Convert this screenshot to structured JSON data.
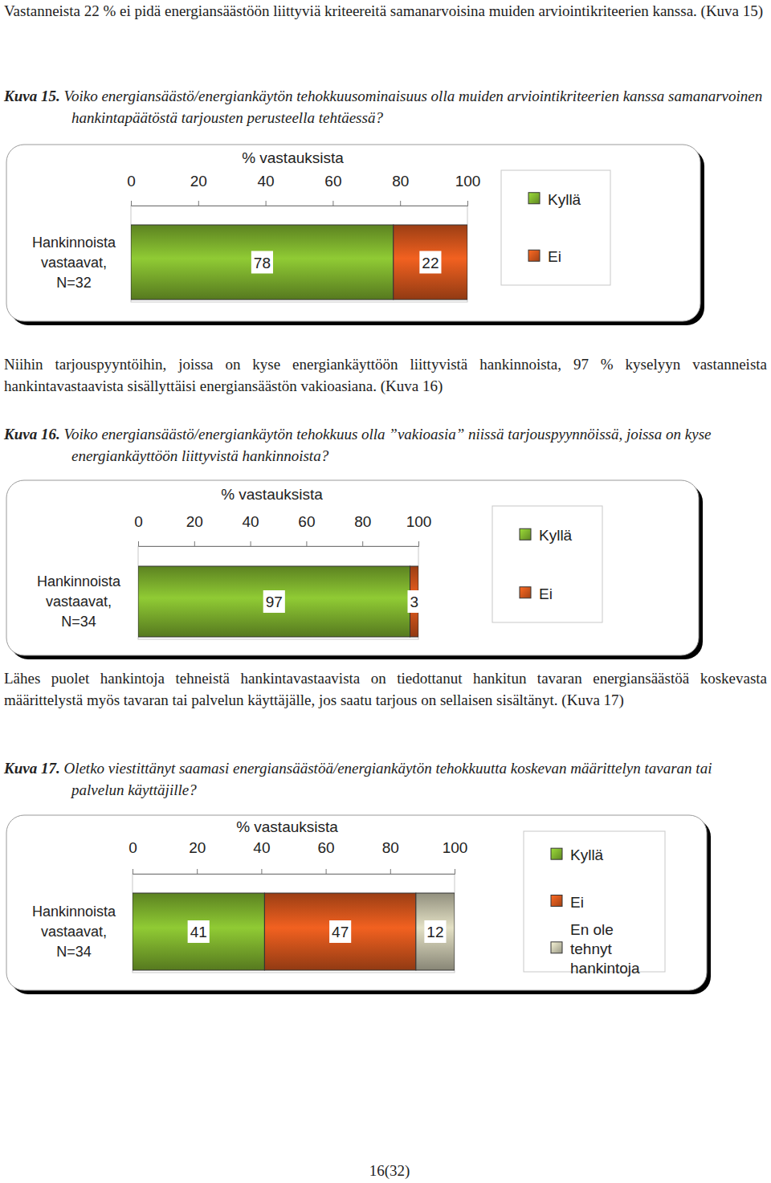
{
  "document": {
    "paragraphs": [
      "Vastanneista 22 % ei pidä energiansäästöön liittyviä kriteereitä samanarvoisina muiden arviointikriteerien kanssa. (Kuva 15)",
      "Niihin tarjouspyyntöihin, joissa on kyse energiankäyttöön liittyvistä hankinnoista, 97 % kyselyyn vastanneista hankintavastaavista sisällyttäisi energiansäästön vakioasiana. (Kuva 16)",
      "Lähes puolet hankintoja tehneistä hankintavastaavista on tiedottanut hankitun tavaran energiansäästöä koskevasta määrittelystä myös tavaran tai palvelun käyttäjälle, jos saatu tarjous on sellaisen sisältänyt. (Kuva 17)"
    ],
    "page_number": "16(32)"
  },
  "chart_data": [
    {
      "type": "bar",
      "orientation": "horizontal",
      "stacked": true,
      "data_labels": true,
      "legend": "right",
      "figure_label": "Kuva 15.",
      "title": "Voiko energiansäästö/energiankäytön tehokkuusominaisuus olla muiden arviointikriteerien kanssa samanarvoinen hankintapäätöstä tarjousten perusteella tehtäessä?",
      "xlabel": "% vastauksista",
      "categories": [
        "Hankinnoista vastaavat, N=32"
      ],
      "series": [
        {
          "name": "Kyllä",
          "color": "#7fb32e",
          "values": [
            78
          ]
        },
        {
          "name": "Ei",
          "color": "#d6561c",
          "values": [
            22
          ]
        }
      ],
      "xlim": [
        0,
        100
      ],
      "xticks": [
        0,
        20,
        40,
        60,
        80,
        100
      ]
    },
    {
      "type": "bar",
      "orientation": "horizontal",
      "stacked": true,
      "data_labels": true,
      "legend": "right",
      "figure_label": "Kuva 16.",
      "title": "Voiko energiansäästö/energiankäytön tehokkuus olla ”vakioasia” niissä tarjouspyynnöissä, joissa on kyse energiankäyttöön liittyvistä hankinnoista?",
      "xlabel": "% vastauksista",
      "categories": [
        "Hankinnoista vastaavat, N=34"
      ],
      "series": [
        {
          "name": "Kyllä",
          "color": "#7fb32e",
          "values": [
            97
          ]
        },
        {
          "name": "Ei",
          "color": "#d6561c",
          "values": [
            3
          ]
        }
      ],
      "xlim": [
        0,
        100
      ],
      "xticks": [
        0,
        20,
        40,
        60,
        80,
        100
      ]
    },
    {
      "type": "bar",
      "orientation": "horizontal",
      "stacked": true,
      "data_labels": true,
      "legend": "right",
      "figure_label": "Kuva 17.",
      "title": "Oletko viestittänyt saamasi energiansäästöä/energiankäytön tehokkuutta koskevan määrittelyn tavaran tai palvelun käyttäjille?",
      "xlabel": "% vastauksista",
      "categories": [
        "Hankinnoista vastaavat, N=34"
      ],
      "series": [
        {
          "name": "Kyllä",
          "color": "#7fb32e",
          "values": [
            41
          ]
        },
        {
          "name": "Ei",
          "color": "#d6561c",
          "values": [
            47
          ]
        },
        {
          "name": "En ole tehnyt hankintoja",
          "color": "#c9c7ae",
          "values": [
            12
          ]
        }
      ],
      "xlim": [
        0,
        100
      ],
      "xticks": [
        0,
        20,
        40,
        60,
        80,
        100
      ]
    }
  ]
}
